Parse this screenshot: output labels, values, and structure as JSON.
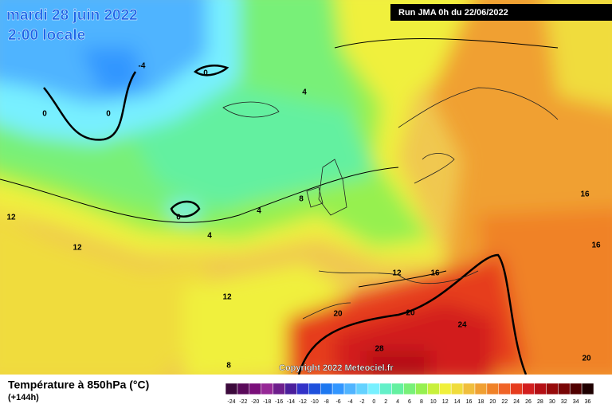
{
  "header": {
    "title": "mardi 28 juin 2022",
    "time": "2:00 locale",
    "run": "Run JMA 0h du 22/06/2022"
  },
  "map": {
    "copyright": "Copyright 2022 Meteociel.fr",
    "contour_labels": [
      -4,
      0,
      0,
      0,
      4,
      8,
      0,
      4,
      4,
      12,
      12,
      12,
      12,
      16,
      16,
      16,
      20,
      20,
      24,
      28,
      8,
      20
    ]
  },
  "footer": {
    "title": "Température à 850hPa (°C)",
    "lead": "(+144h)"
  },
  "scale": {
    "labels": [
      -24,
      -22,
      -20,
      -18,
      -16,
      -14,
      -12,
      -10,
      -8,
      -6,
      -4,
      -2,
      0,
      2,
      4,
      6,
      8,
      10,
      12,
      14,
      16,
      18,
      20,
      22,
      24,
      26,
      28,
      30,
      32,
      34,
      36
    ],
    "colors": [
      "#3c0a3c",
      "#5a0a5a",
      "#7a0f7a",
      "#962896",
      "#6e1e8c",
      "#4b1e9b",
      "#3232c8",
      "#1e50dc",
      "#1e78f0",
      "#3296ff",
      "#50b4ff",
      "#64d2ff",
      "#78f0ff",
      "#64f0c8",
      "#64f0a0",
      "#78f078",
      "#96f050",
      "#c8f03c",
      "#f0f03c",
      "#f0dc3c",
      "#f0be3c",
      "#f0a032",
      "#f08228",
      "#f06428",
      "#e63c1e",
      "#d21e1e",
      "#b40f14",
      "#960a0a",
      "#780505",
      "#500000",
      "#1e0000"
    ]
  }
}
